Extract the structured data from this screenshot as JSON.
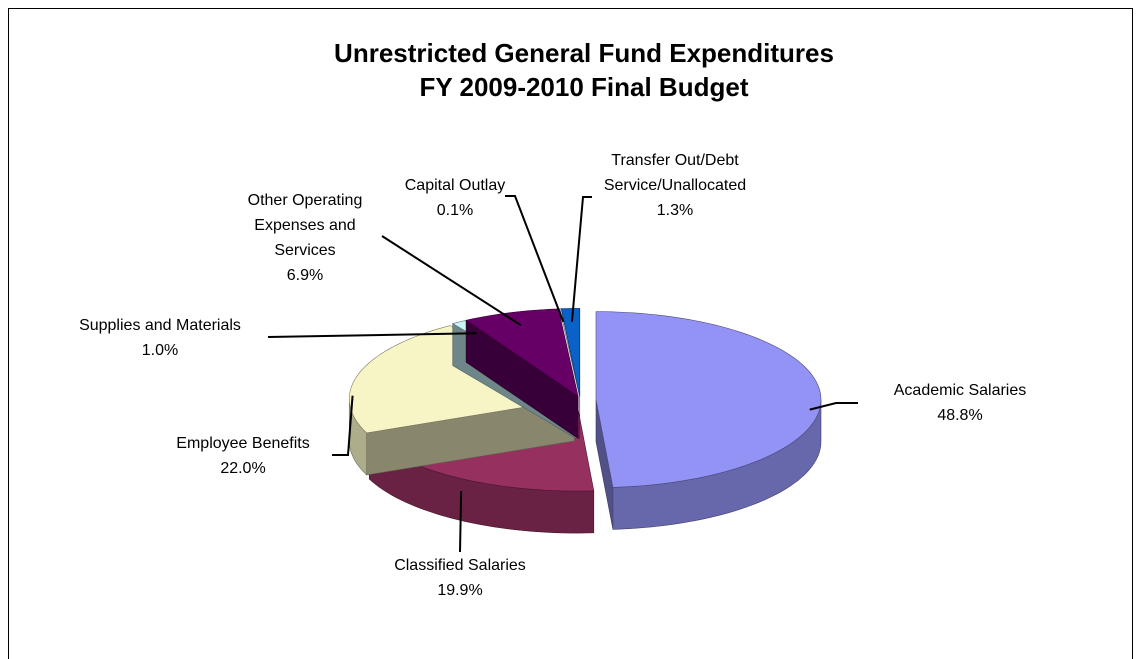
{
  "chart_data": {
    "type": "pie",
    "title": "Unrestricted General Fund Expenditures",
    "subtitle": "FY 2009-2010 Final Budget",
    "categories": [
      "Academic Salaries",
      "Classified Salaries",
      "Employee Benefits",
      "Supplies and Materials",
      "Other Operating Expenses and Services",
      "Capital Outlay",
      "Transfer Out/Debt Service/Unallocated"
    ],
    "values": [
      48.8,
      19.9,
      22.0,
      1.0,
      6.9,
      0.1,
      1.3
    ],
    "value_labels": [
      "48.8%",
      "19.9%",
      "22.0%",
      "1.0%",
      "6.9%",
      "0.1%",
      "1.3%"
    ],
    "colors": [
      "#9393f5",
      "#96305f",
      "#f7f5c6",
      "#c8f4f8",
      "#660066",
      "#c6c6f2",
      "#0a62c8"
    ]
  }
}
